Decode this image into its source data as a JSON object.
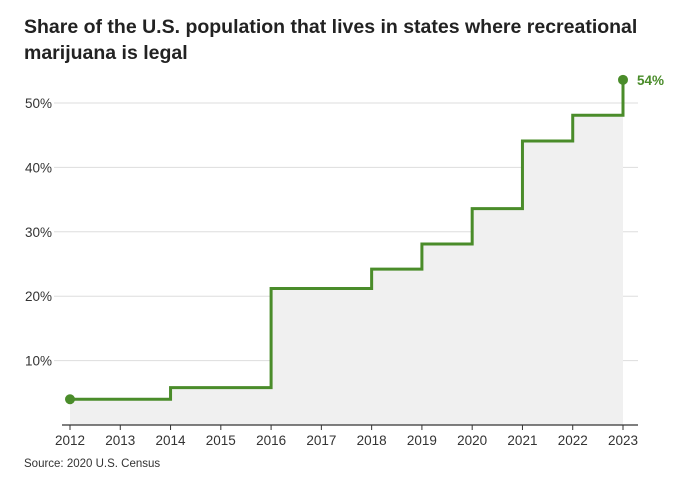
{
  "chart_data": {
    "type": "line",
    "step": "post",
    "title": "Share of the U.S. population that lives in states where recreational marijuana is legal",
    "xlabel": "",
    "ylabel": "",
    "x_ticks": [
      "2012",
      "2013",
      "2014",
      "2015",
      "2016",
      "2017",
      "2018",
      "2019",
      "2020",
      "2021",
      "2022",
      "2023"
    ],
    "y_ticks": [
      "10%",
      "20%",
      "30%",
      "40%",
      "50%"
    ],
    "xlim": [
      2012,
      2023
    ],
    "ylim": [
      0,
      55
    ],
    "grid": "horizontal",
    "area_fill": true,
    "series": [
      {
        "x": [
          2012,
          2014,
          2016,
          2018,
          2019,
          2020,
          2021,
          2022,
          2023
        ],
        "values": [
          4,
          5.8,
          21.2,
          24.2,
          28.1,
          33.6,
          44.1,
          48.1,
          53.6
        ]
      }
    ],
    "end_label": "54%",
    "source": "Source: 2020 U.S. Census",
    "colors": {
      "line": "#4a8c2a",
      "area": "#f0f0f0",
      "grid": "#dddddd",
      "axis": "#333333"
    }
  }
}
